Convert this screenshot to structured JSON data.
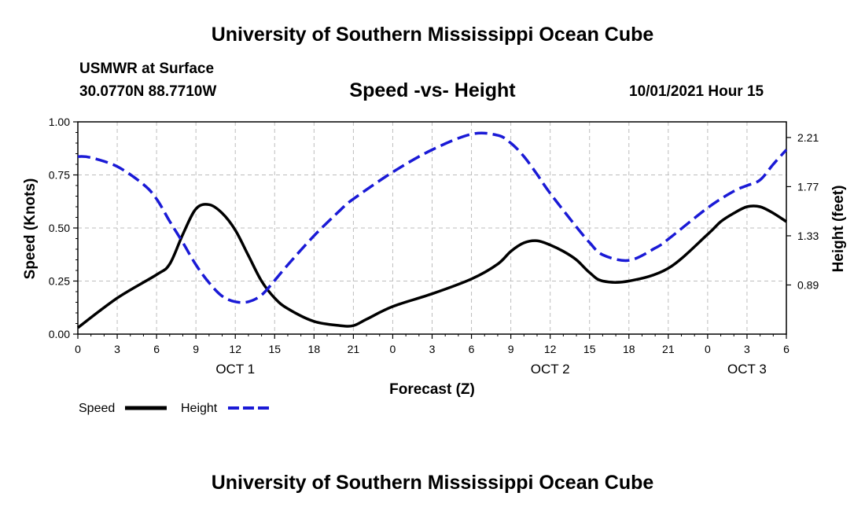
{
  "header": {
    "title_top": "University of Southern Mississippi Ocean Cube",
    "station": "USMWR at Surface",
    "coords": "30.0770N  88.7710W",
    "subtitle": "Speed -vs- Height",
    "timestamp": "10/01/2021 Hour 15",
    "title_bottom": "University of Southern Mississippi Ocean Cube"
  },
  "chart_data": {
    "type": "line",
    "xlabel": "Forecast (Z)",
    "ylabel": "Speed (Knots)",
    "y2label": "Height (feet)",
    "x_hours": [
      0,
      3,
      6,
      9,
      12,
      15,
      18,
      21,
      24,
      27,
      30,
      33,
      36,
      39,
      42,
      45,
      48,
      51,
      54
    ],
    "x_tick_labels": [
      "0",
      "3",
      "6",
      "9",
      "12",
      "15",
      "18",
      "21",
      "0",
      "3",
      "6",
      "9",
      "12",
      "15",
      "18",
      "21",
      "0",
      "3",
      "6"
    ],
    "date_labels": [
      {
        "label": "OCT 1",
        "hour": 12
      },
      {
        "label": "OCT 2",
        "hour": 36
      },
      {
        "label": "OCT 3",
        "hour": 51
      }
    ],
    "xlim": [
      0,
      54
    ],
    "ylim": [
      0,
      1.0
    ],
    "y_ticks": [
      "0.00",
      "0.25",
      "0.50",
      "0.75",
      "1.00"
    ],
    "y2lim": [
      0.45,
      2.35
    ],
    "y2_ticks": [
      "0.89",
      "1.33",
      "1.77",
      "2.21"
    ],
    "grid": true,
    "legend_placement": "bottom-left",
    "series": [
      {
        "name": "Speed",
        "axis": "left",
        "color": "#000000",
        "style": "solid",
        "x": [
          0,
          3,
          6,
          7,
          8,
          9,
          10,
          11,
          12,
          13,
          14,
          15,
          16,
          18,
          20,
          21,
          22,
          24,
          27,
          30,
          32,
          33,
          34,
          35,
          36,
          37,
          38,
          39,
          40,
          42,
          45,
          48,
          49,
          50,
          51,
          52,
          53,
          54
        ],
        "y": [
          0.03,
          0.17,
          0.28,
          0.33,
          0.47,
          0.59,
          0.61,
          0.57,
          0.49,
          0.37,
          0.25,
          0.17,
          0.12,
          0.06,
          0.04,
          0.04,
          0.07,
          0.13,
          0.19,
          0.26,
          0.33,
          0.39,
          0.43,
          0.44,
          0.42,
          0.39,
          0.35,
          0.29,
          0.25,
          0.25,
          0.31,
          0.47,
          0.53,
          0.57,
          0.6,
          0.6,
          0.57,
          0.53
        ]
      },
      {
        "name": "Height",
        "axis": "right",
        "color": "#1a1ad6",
        "style": "dashed",
        "x": [
          0,
          1,
          3,
          5,
          6,
          7,
          8,
          9,
          10,
          11,
          12,
          13,
          14,
          15,
          16,
          18,
          20,
          21,
          24,
          27,
          30,
          32,
          33,
          34,
          35,
          36,
          38,
          39,
          40,
          42,
          44,
          45,
          48,
          50,
          51,
          52,
          53,
          54
        ],
        "y": [
          2.04,
          2.03,
          1.95,
          1.79,
          1.66,
          1.46,
          1.27,
          1.07,
          0.91,
          0.79,
          0.74,
          0.74,
          0.8,
          0.93,
          1.07,
          1.33,
          1.56,
          1.66,
          1.9,
          2.1,
          2.24,
          2.23,
          2.16,
          2.04,
          1.88,
          1.71,
          1.41,
          1.27,
          1.16,
          1.11,
          1.22,
          1.3,
          1.58,
          1.73,
          1.78,
          1.83,
          1.97,
          2.1
        ]
      }
    ]
  },
  "legend": {
    "speed_label": "Speed",
    "height_label": "Height"
  }
}
